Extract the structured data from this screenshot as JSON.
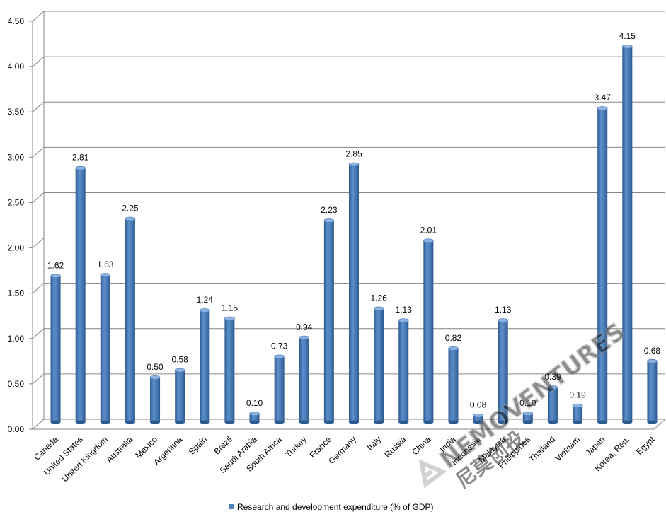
{
  "chart_data": {
    "type": "bar",
    "categories": [
      "Canada",
      "United States",
      "United Kingdom",
      "Australia",
      "Mexico",
      "Argentina",
      "Spain",
      "Brazil",
      "Saudi Arabia",
      "South Africa",
      "Turkey",
      "France",
      "Germany",
      "Italy",
      "Russia",
      "China",
      "India",
      "Indonesia",
      "Malaysia",
      "Philippines",
      "Thailand",
      "Vietnam",
      "Japan",
      "Korea, Rep.",
      "Egypt"
    ],
    "series": [
      {
        "name": "Research and development expenditure (% of GDP)",
        "values": [
          1.62,
          2.81,
          1.63,
          2.25,
          0.5,
          0.58,
          1.24,
          1.15,
          0.1,
          0.73,
          0.94,
          2.23,
          2.85,
          1.26,
          1.13,
          2.01,
          0.82,
          0.08,
          1.13,
          0.1,
          0.39,
          0.19,
          3.47,
          4.15,
          0.68
        ],
        "labels": [
          "1.62",
          "2.81",
          "1.63",
          "2.25",
          "0.50",
          "0.58",
          "1.24",
          "1.15",
          "0.10",
          "0.73",
          "0.94",
          "2.23",
          "2.85",
          "1.26",
          "1.13",
          "2.01",
          "0.82",
          "0.08",
          "1.13",
          "0.10",
          "0.39",
          "0.19",
          "3.47",
          "4.15",
          "0.68"
        ]
      }
    ],
    "y_ticks": [
      "0.00",
      "0.50",
      "1.00",
      "1.50",
      "2.00",
      "2.50",
      "3.00",
      "3.50",
      "4.00",
      "4.50"
    ],
    "ylim": [
      0,
      4.5
    ],
    "grid": true,
    "legend_position": "bottom-center",
    "colors": {
      "bar": "#4f81bd",
      "bar_dark": "#2c5a8f",
      "bar_light": "#8db3e2",
      "grid": "#868686"
    }
  },
  "watermark": {
    "text": "NEMOVENTURES",
    "subtext": "尼莫创投"
  }
}
